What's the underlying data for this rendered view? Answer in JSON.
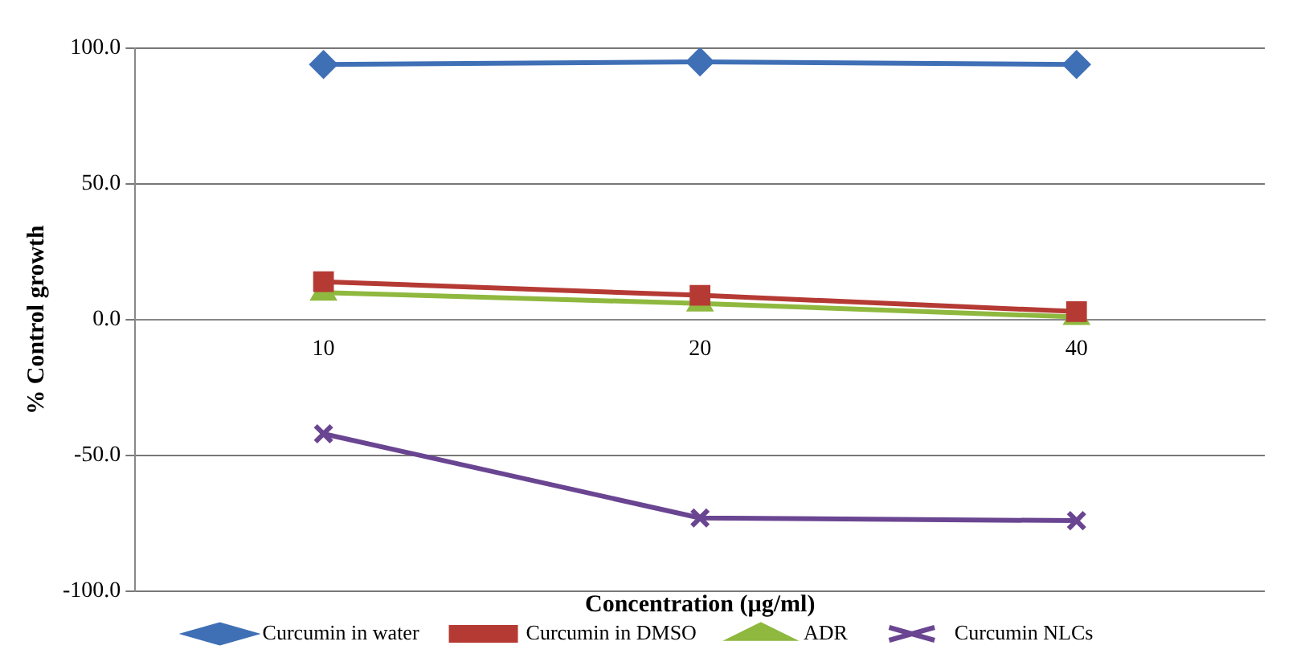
{
  "chart_data": {
    "type": "line",
    "xlabel": "Concentration (µg/ml)",
    "ylabel": "% Control growth",
    "categories": [
      "10",
      "20",
      "40"
    ],
    "series": [
      {
        "name": "Curcumin in water",
        "color": "#3f6fb5",
        "marker": "diamond",
        "values": [
          94,
          95,
          94
        ]
      },
      {
        "name": "Curcumin in DMSO",
        "color": "#b53a34",
        "marker": "square",
        "values": [
          14,
          9,
          3
        ]
      },
      {
        "name": "ADR",
        "color": "#8fb83f",
        "marker": "triangle",
        "values": [
          10,
          6,
          1
        ]
      },
      {
        "name": "Curcumin NLCs",
        "color": "#6a4591",
        "marker": "cross",
        "values": [
          -42,
          -73,
          -74
        ]
      }
    ],
    "ylim": [
      -100,
      100
    ],
    "yticks": [
      {
        "value": -100,
        "label": "-100.0"
      },
      {
        "value": -50,
        "label": "-50.0"
      },
      {
        "value": 0,
        "label": "0.0"
      },
      {
        "value": 50,
        "label": "50.0"
      },
      {
        "value": 100,
        "label": "100.0"
      }
    ],
    "grid": "y",
    "legend": "bottom",
    "line_style": "solid"
  }
}
